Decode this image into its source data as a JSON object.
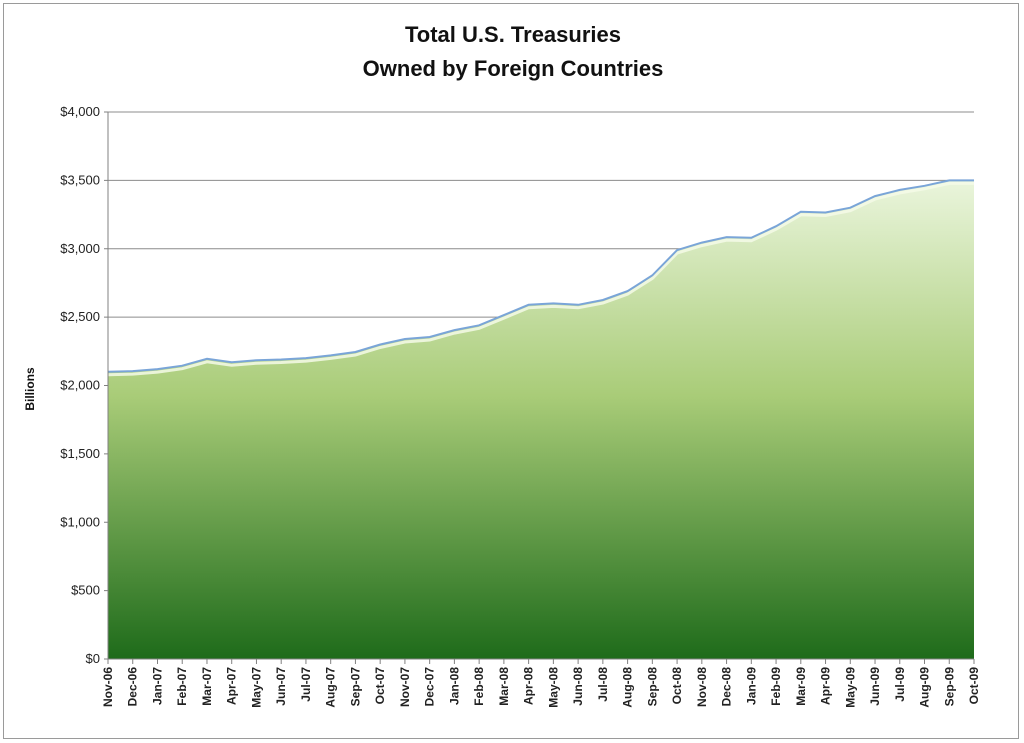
{
  "chart_data": {
    "type": "area",
    "title_lines": [
      "Total U.S. Treasuries",
      "Owned by Foreign Countries"
    ],
    "xlabel": "",
    "ylabel": "Billions",
    "ylim": [
      0,
      4000
    ],
    "yticks": [
      0,
      500,
      1000,
      1500,
      2000,
      2500,
      3000,
      3500,
      4000
    ],
    "ytick_labels": [
      "$0",
      "$500",
      "$1,000",
      "$1,500",
      "$2,000",
      "$2,500",
      "$3,000",
      "$3,500",
      "$4,000"
    ],
    "grid": true,
    "categories": [
      "Nov-06",
      "Dec-06",
      "Jan-07",
      "Feb-07",
      "Mar-07",
      "Apr-07",
      "May-07",
      "Jun-07",
      "Jul-07",
      "Aug-07",
      "Sep-07",
      "Oct-07",
      "Nov-07",
      "Dec-07",
      "Jan-08",
      "Feb-08",
      "Mar-08",
      "Apr-08",
      "May-08",
      "Jun-08",
      "Jul-08",
      "Aug-08",
      "Sep-08",
      "Oct-08",
      "Nov-08",
      "Dec-08",
      "Jan-09",
      "Feb-09",
      "Mar-09",
      "Apr-09",
      "May-09",
      "Jun-09",
      "Jul-09",
      "Aug-09",
      "Sep-09",
      "Oct-09"
    ],
    "values": [
      2100,
      2105,
      2120,
      2145,
      2195,
      2170,
      2185,
      2190,
      2200,
      2220,
      2245,
      2300,
      2340,
      2355,
      2405,
      2440,
      2515,
      2590,
      2600,
      2590,
      2625,
      2690,
      2805,
      2990,
      3045,
      3085,
      3080,
      3165,
      3270,
      3265,
      3300,
      3385,
      3430,
      3460,
      3500,
      3500
    ],
    "colors": {
      "line": "#7aa5d8",
      "fill_top": "#eaf5dc",
      "fill_mid": "#a9cc78",
      "fill_bottom": "#1e6b1a",
      "grid": "#8c8c8c",
      "axis": "#808080"
    }
  }
}
